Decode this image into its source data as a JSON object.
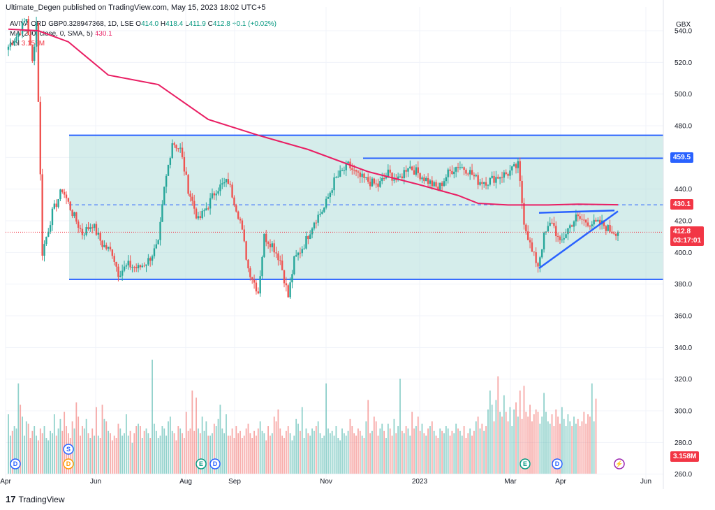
{
  "header": {
    "attribution": "Ultimate_Degen published on TradingView.com, May 15, 2023 18:02 UTC+5"
  },
  "legend": {
    "symbol": "AVIVA ORD GBP0.328947368, 1D, LSE",
    "open_label": "O",
    "open": "414.0",
    "high_label": "H",
    "high": "418.4",
    "low_label": "L",
    "low": "411.9",
    "close_label": "C",
    "close": "412.8",
    "change": "+0.1 (+0.02%)",
    "ma_label": "MA (200, close, 0, SMA, 5)",
    "ma_value": "430.1",
    "vol_label": "Vol",
    "vol_value": "3.158M"
  },
  "price_tags": {
    "level_high": "459.5",
    "ma": "430.1",
    "last": "412.8",
    "countdown": "03:17:01",
    "volume": "3.158M"
  },
  "footer": {
    "logo": "17",
    "brand": "TradingView"
  },
  "colors": {
    "up": "#26a69a",
    "down": "#ef5350",
    "ma": "#e91e63",
    "box": "#b2dfdb",
    "line": "#2962ff",
    "last": "#f23645"
  },
  "chart_data": {
    "type": "candlestick",
    "title": "AVIVA ORD GBP0.328947368, 1D, LSE",
    "currency": "GBX",
    "ylim": [
      255,
      555
    ],
    "y_ticks": [
      "260.0",
      "280.0",
      "300.0",
      "320.0",
      "340.0",
      "360.0",
      "380.0",
      "400.0",
      "420.0",
      "440.0",
      "460.0",
      "480.0",
      "500.0",
      "520.0",
      "540.0"
    ],
    "x_ticks": [
      "Apr",
      "Jun",
      "Aug",
      "Sep",
      "Nov",
      "2023",
      "Mar",
      "Apr",
      "Jun"
    ],
    "event_badges": [
      "D",
      "S",
      "D",
      "E",
      "D",
      "E",
      "D",
      "⚡"
    ],
    "range_box": {
      "top": 474,
      "bottom": 383
    },
    "horizontal_levels": [
      459.5,
      430.1
    ],
    "last_price": 412.8,
    "price_path": [
      [
        0,
        530
      ],
      [
        5,
        538
      ],
      [
        9,
        548
      ],
      [
        12,
        520
      ],
      [
        14,
        545
      ],
      [
        17,
        400
      ],
      [
        22,
        425
      ],
      [
        27,
        440
      ],
      [
        32,
        425
      ],
      [
        37,
        412
      ],
      [
        42,
        418
      ],
      [
        47,
        405
      ],
      [
        52,
        400
      ],
      [
        55,
        387
      ],
      [
        60,
        392
      ],
      [
        65,
        390
      ],
      [
        70,
        395
      ],
      [
        75,
        405
      ],
      [
        78,
        440
      ],
      [
        82,
        470
      ],
      [
        86,
        465
      ],
      [
        90,
        440
      ],
      [
        95,
        420
      ],
      [
        100,
        430
      ],
      [
        104,
        440
      ],
      [
        110,
        445
      ],
      [
        116,
        420
      ],
      [
        120,
        390
      ],
      [
        125,
        375
      ],
      [
        128,
        410
      ],
      [
        132,
        405
      ],
      [
        136,
        395
      ],
      [
        140,
        372
      ],
      [
        143,
        395
      ],
      [
        148,
        405
      ],
      [
        153,
        420
      ],
      [
        158,
        428
      ],
      [
        163,
        445
      ],
      [
        170,
        455
      ],
      [
        175,
        448
      ],
      [
        180,
        445
      ],
      [
        185,
        442
      ],
      [
        190,
        450
      ],
      [
        195,
        445
      ],
      [
        200,
        455
      ],
      [
        205,
        450
      ],
      [
        210,
        445
      ],
      [
        215,
        440
      ],
      [
        220,
        450
      ],
      [
        225,
        455
      ],
      [
        230,
        452
      ],
      [
        235,
        445
      ],
      [
        240,
        445
      ],
      [
        245,
        448
      ],
      [
        250,
        450
      ],
      [
        255,
        455
      ],
      [
        258,
        420
      ],
      [
        262,
        400
      ],
      [
        265,
        392
      ],
      [
        268,
        410
      ],
      [
        272,
        420
      ],
      [
        276,
        405
      ],
      [
        280,
        415
      ],
      [
        284,
        422
      ],
      [
        288,
        420
      ],
      [
        293,
        418
      ],
      [
        297,
        418
      ],
      [
        301,
        414
      ],
      [
        305,
        412.8
      ]
    ],
    "ma_path": [
      [
        0,
        541
      ],
      [
        15,
        540
      ],
      [
        30,
        533
      ],
      [
        50,
        512
      ],
      [
        75,
        506
      ],
      [
        100,
        484
      ],
      [
        125,
        474
      ],
      [
        150,
        465
      ],
      [
        180,
        451
      ],
      [
        205,
        443
      ],
      [
        225,
        436
      ],
      [
        235,
        431
      ],
      [
        250,
        430
      ],
      [
        270,
        430
      ],
      [
        285,
        430.5
      ],
      [
        305,
        430.1
      ]
    ],
    "volume_M": [
      2.5,
      1.6,
      1.8,
      2.0,
      1.9,
      3.8,
      2.9,
      2.4,
      1.6,
      2.2,
      2.1,
      1.5,
      1.8,
      2.0,
      1.6,
      1.4,
      1.9,
      1.7,
      2.0,
      1.5,
      1.4,
      1.8,
      1.7,
      2.5,
      1.6,
      1.9,
      2.3,
      1.8,
      2.6,
      2.0,
      1.7,
      1.5,
      2.2,
      1.9,
      3.0,
      2.4,
      1.6,
      2.0,
      1.9,
      2.3,
      1.7,
      1.5,
      1.9,
      1.6,
      2.8,
      1.6,
      1.5,
      2.9,
      2.3,
      2.2,
      1.8,
      1.7,
      1.4,
      1.6,
      1.5,
      2.1,
      1.9,
      1.6,
      1.7,
      2.5,
      1.6,
      1.8,
      1.3,
      1.7,
      2.0,
      2.1,
      2.0,
      1.5,
      1.8,
      1.9,
      1.7,
      1.5,
      4.8,
      2.1,
      1.8,
      1.5,
      1.6,
      2.0,
      1.9,
      1.6,
      2.2,
      2.4,
      1.8,
      1.7,
      1.4,
      2.0,
      1.9,
      1.7,
      1.5,
      2.6,
      1.8,
      1.9,
      3.5,
      1.8,
      3.2,
      1.9,
      1.7,
      2.4,
      1.8,
      2.2,
      1.6,
      1.6,
      1.7,
      2.1,
      2.0,
      2.3,
      2.9,
      1.9,
      1.7,
      2.5,
      1.6,
      1.6,
      1.9,
      1.5,
      2.0,
      1.7,
      1.8,
      1.5,
      1.6,
      1.9,
      2.1,
      1.7,
      1.5,
      1.8,
      1.6,
      1.9,
      2.2,
      1.8,
      1.7,
      1.4,
      2.0,
      1.6,
      1.7,
      2.4,
      2.2,
      2.7,
      1.9,
      1.6,
      1.5,
      1.8,
      2.0,
      1.7,
      1.4,
      1.6,
      2.3,
      2.1,
      1.8,
      2.8,
      1.5,
      1.9,
      1.7,
      1.6,
      1.9,
      1.8,
      2.0,
      2.2,
      1.7,
      1.5,
      1.6,
      3.8,
      1.9,
      1.7,
      1.8,
      1.6,
      2.0,
      1.5,
      1.4,
      1.9,
      1.7,
      1.6,
      1.8,
      2.3,
      2.0,
      1.7,
      1.6,
      1.9,
      1.8,
      1.6,
      1.5,
      2.2,
      3.1,
      1.7,
      1.8,
      2.4,
      2.2,
      1.6,
      1.9,
      2.1,
      1.8,
      1.5,
      2.1,
      1.9,
      1.6,
      2.3,
      1.7,
      2.0,
      4.0,
      1.8,
      1.7,
      2.0,
      1.9,
      1.6,
      2.6,
      1.9,
      2.0,
      2.4,
      1.8,
      2.1,
      1.7,
      1.6,
      1.9,
      2.0,
      2.2,
      1.8,
      1.6,
      1.5,
      1.9,
      1.8,
      1.7,
      2.0,
      1.9,
      1.6,
      1.8,
      1.7,
      2.1,
      1.9,
      1.8,
      1.6,
      2.0,
      1.5,
      1.7,
      1.9,
      1.6,
      1.8,
      2.2,
      2.4,
      1.9,
      2.1,
      1.8,
      2.0,
      2.7,
      3.5,
      2.9,
      2.2,
      3.1,
      4.1,
      2.6,
      2.4,
      3.3,
      2.6,
      2.2,
      2.8,
      2.0,
      2.7,
      3.0,
      2.4,
      3.5,
      2.3,
      3.7,
      2.6,
      2.4,
      2.9,
      2.2,
      2.5,
      2.7,
      2.6,
      2.1,
      2.4,
      3.4,
      2.6,
      2.2,
      2.1,
      2.5,
      2.0,
      2.7,
      2.4,
      2.1,
      2.8,
      2.3,
      2.0,
      2.5,
      2.2,
      2.0,
      2.4,
      2.1,
      2.3,
      2.0,
      2.2,
      2.6,
      2.1,
      2.5,
      2.4,
      3.8,
      2.2,
      3.158
    ]
  }
}
